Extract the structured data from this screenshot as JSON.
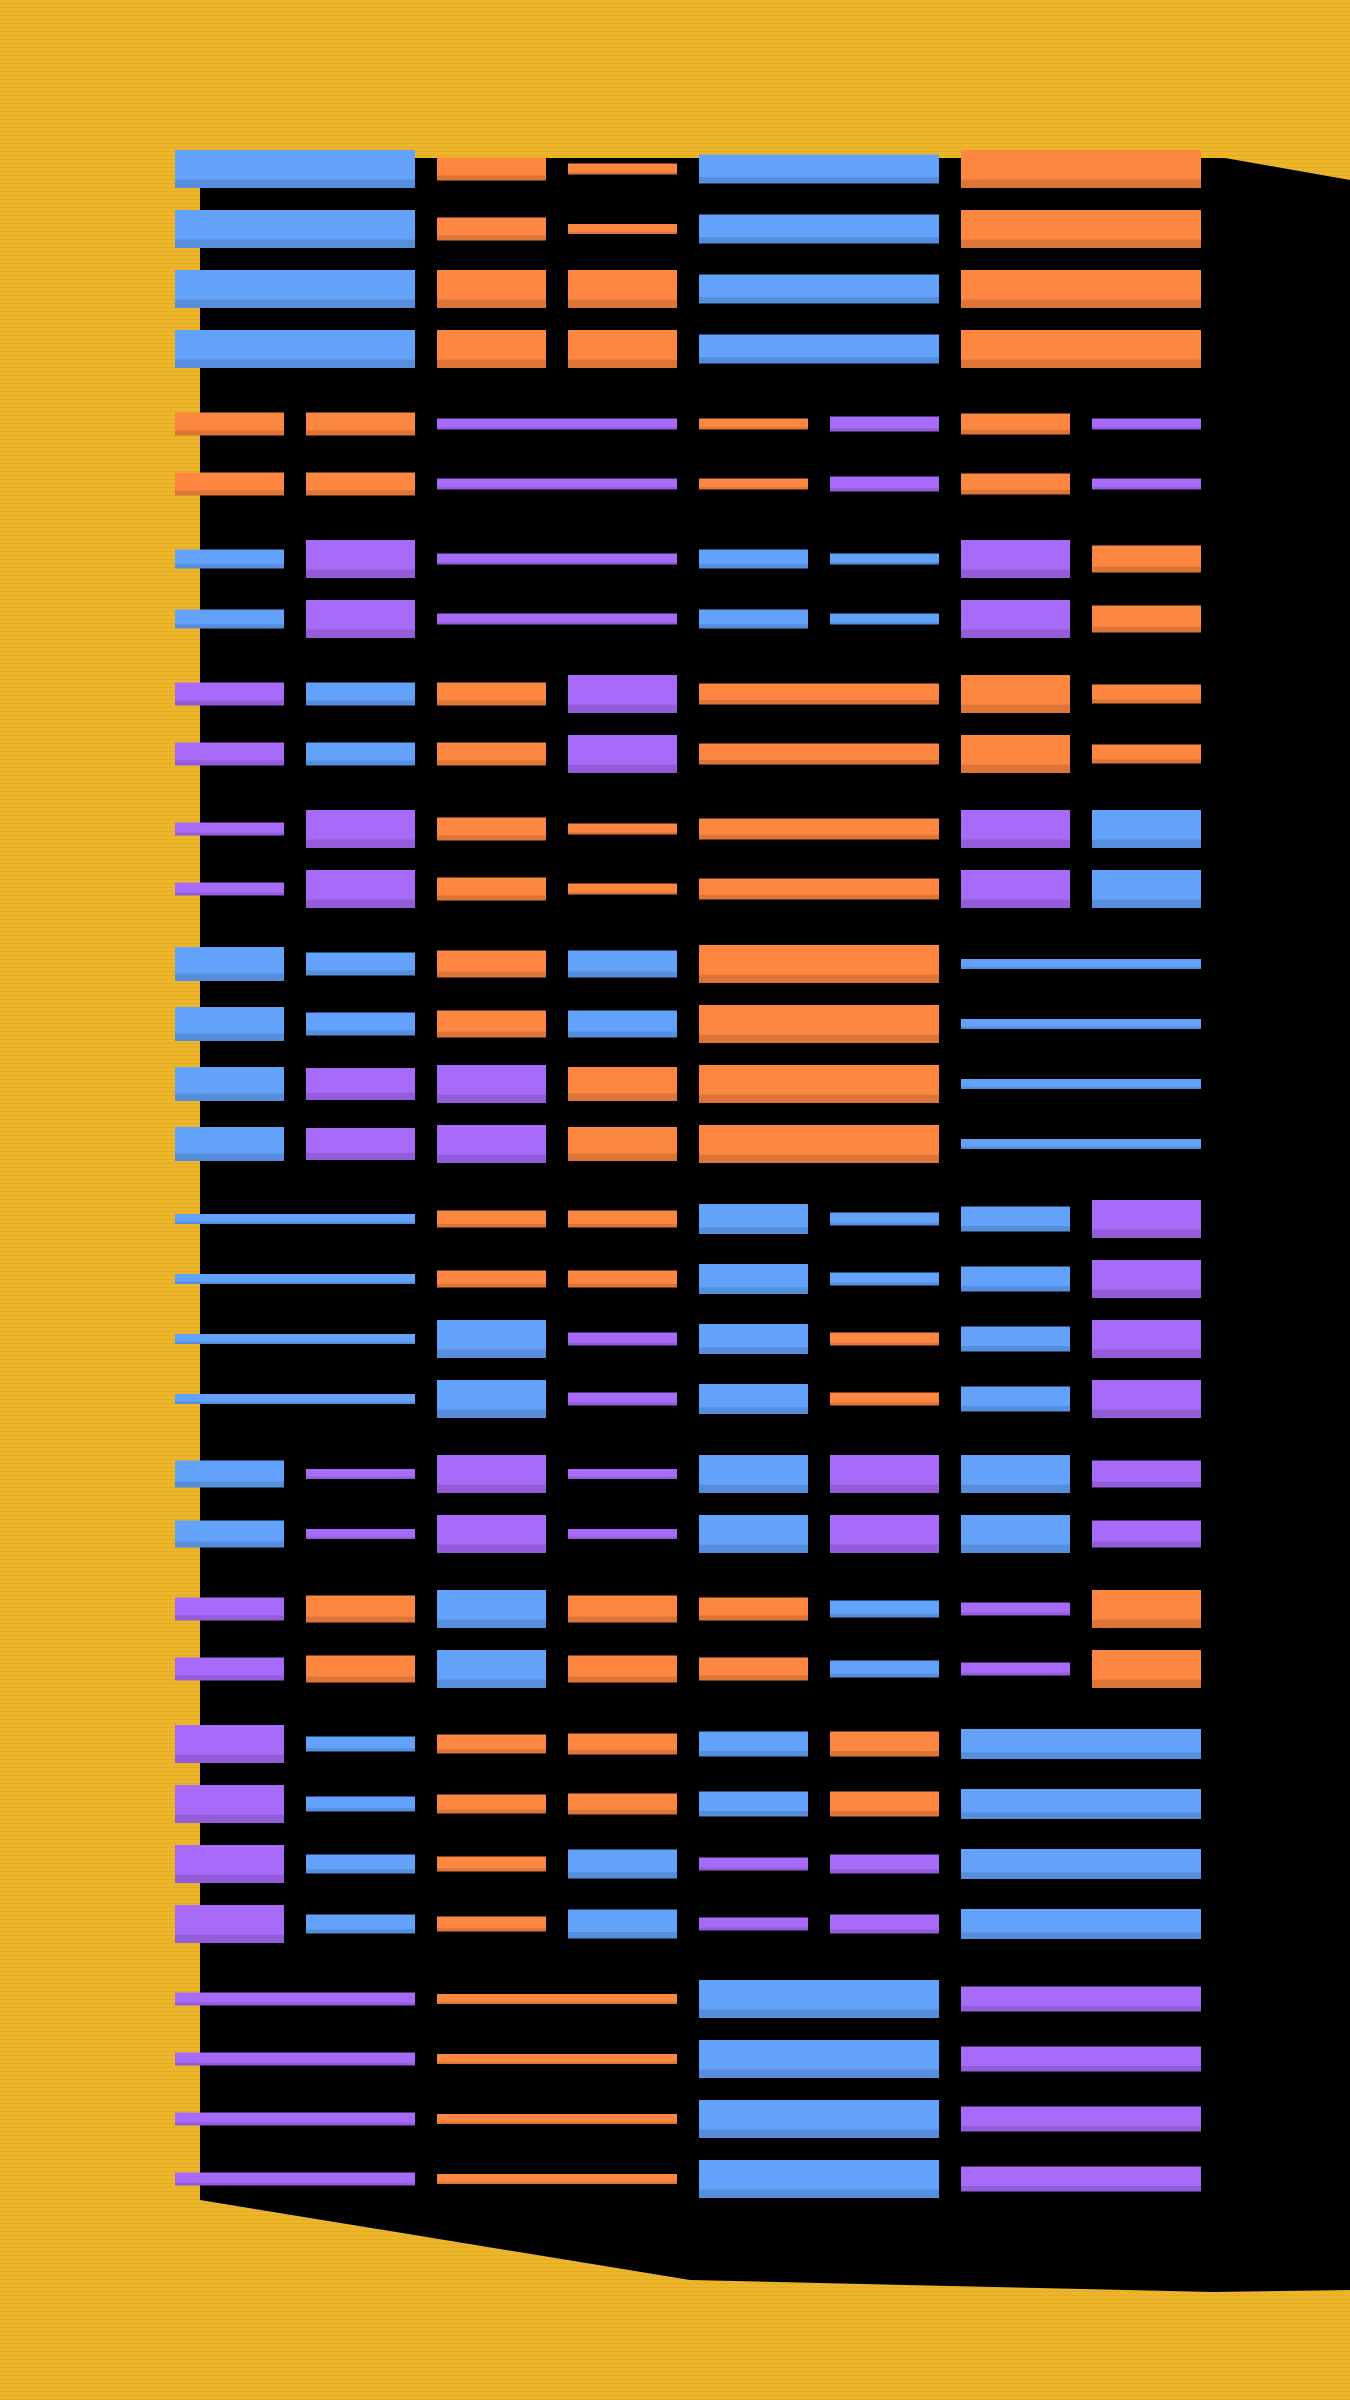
{
  "palette": {
    "background": "#ecb52a",
    "shadow": "#000000",
    "blue": "#62a2fb",
    "orange": "#fd8640",
    "purple": "#a86af9"
  },
  "blocks": [
    {
      "rows": 4,
      "cells": [
        {
          "span": 2,
          "colors": [
            "blue",
            "blue",
            "blue",
            "blue"
          ],
          "heights": [
            1.0,
            1.0,
            1.0,
            1.0
          ]
        },
        {
          "span": 1,
          "colors": [
            "orange",
            "orange",
            "orange",
            "orange"
          ],
          "heights": [
            0.6,
            0.6,
            1.0,
            1.0
          ]
        },
        {
          "span": 1,
          "colors": [
            "orange",
            "orange",
            "orange",
            "orange"
          ],
          "heights": [
            0.3,
            0.25,
            1.0,
            1.0
          ]
        },
        {
          "span": 2,
          "colors": [
            "blue",
            "blue",
            "blue",
            "blue"
          ],
          "heights": [
            0.75,
            0.75,
            0.75,
            0.75
          ]
        },
        {
          "span": 2,
          "colors": [
            "orange",
            "orange",
            "orange",
            "orange"
          ],
          "heights": [
            1.0,
            1.0,
            1.0,
            1.0
          ]
        }
      ]
    },
    {
      "rows": 2,
      "cells": [
        {
          "span": 1,
          "colors": [
            "orange",
            "orange"
          ],
          "heights": [
            0.6,
            0.6
          ]
        },
        {
          "span": 1,
          "colors": [
            "orange",
            "orange"
          ],
          "heights": [
            0.6,
            0.6
          ]
        },
        {
          "span": 2,
          "colors": [
            "purple",
            "purple"
          ],
          "heights": [
            0.3,
            0.3
          ]
        },
        {
          "span": 1,
          "colors": [
            "orange",
            "orange"
          ],
          "heights": [
            0.3,
            0.3
          ]
        },
        {
          "span": 1,
          "colors": [
            "purple",
            "purple"
          ],
          "heights": [
            0.4,
            0.4
          ]
        },
        {
          "span": 1,
          "colors": [
            "orange",
            "orange"
          ],
          "heights": [
            0.55,
            0.55
          ]
        },
        {
          "span": 1,
          "colors": [
            "purple",
            "purple"
          ],
          "heights": [
            0.3,
            0.3
          ]
        }
      ]
    },
    {
      "rows": 2,
      "cells": [
        {
          "span": 1,
          "colors": [
            "blue",
            "blue"
          ],
          "heights": [
            0.5,
            0.5
          ]
        },
        {
          "span": 1,
          "colors": [
            "purple",
            "purple"
          ],
          "heights": [
            1.0,
            1.0
          ]
        },
        {
          "span": 2,
          "colors": [
            "purple",
            "purple"
          ],
          "heights": [
            0.3,
            0.3
          ]
        },
        {
          "span": 1,
          "colors": [
            "blue",
            "blue"
          ],
          "heights": [
            0.5,
            0.5
          ]
        },
        {
          "span": 1,
          "colors": [
            "blue",
            "blue"
          ],
          "heights": [
            0.3,
            0.3
          ]
        },
        {
          "span": 1,
          "colors": [
            "purple",
            "purple"
          ],
          "heights": [
            1.0,
            1.0
          ]
        },
        {
          "span": 1,
          "colors": [
            "orange",
            "orange"
          ],
          "heights": [
            0.7,
            0.7
          ]
        }
      ]
    },
    {
      "rows": 2,
      "cells": [
        {
          "span": 1,
          "colors": [
            "purple",
            "purple"
          ],
          "heights": [
            0.6,
            0.6
          ]
        },
        {
          "span": 1,
          "colors": [
            "blue",
            "blue"
          ],
          "heights": [
            0.6,
            0.6
          ]
        },
        {
          "span": 1,
          "colors": [
            "orange",
            "orange"
          ],
          "heights": [
            0.6,
            0.6
          ]
        },
        {
          "span": 1,
          "colors": [
            "purple",
            "purple"
          ],
          "heights": [
            1.0,
            1.0
          ]
        },
        {
          "span": 2,
          "colors": [
            "orange",
            "orange"
          ],
          "heights": [
            0.55,
            0.55
          ]
        },
        {
          "span": 1,
          "colors": [
            "orange",
            "orange"
          ],
          "heights": [
            1.0,
            1.0
          ]
        },
        {
          "span": 1,
          "colors": [
            "orange",
            "orange"
          ],
          "heights": [
            0.5,
            0.5
          ]
        }
      ]
    },
    {
      "rows": 2,
      "cells": [
        {
          "span": 1,
          "colors": [
            "purple",
            "purple"
          ],
          "heights": [
            0.35,
            0.35
          ]
        },
        {
          "span": 1,
          "colors": [
            "purple",
            "purple"
          ],
          "heights": [
            1.0,
            1.0
          ]
        },
        {
          "span": 1,
          "colors": [
            "orange",
            "orange"
          ],
          "heights": [
            0.6,
            0.6
          ]
        },
        {
          "span": 1,
          "colors": [
            "orange",
            "orange"
          ],
          "heights": [
            0.3,
            0.3
          ]
        },
        {
          "span": 2,
          "colors": [
            "orange",
            "orange"
          ],
          "heights": [
            0.55,
            0.55
          ]
        },
        {
          "span": 1,
          "colors": [
            "purple",
            "purple"
          ],
          "heights": [
            1.0,
            1.0
          ]
        },
        {
          "span": 1,
          "colors": [
            "blue",
            "blue"
          ],
          "heights": [
            1.0,
            1.0
          ]
        }
      ]
    },
    {
      "rows": 4,
      "cells": [
        {
          "span": 1,
          "colors": [
            "blue",
            "blue",
            "blue",
            "blue"
          ],
          "heights": [
            0.9,
            0.9,
            0.9,
            0.9
          ]
        },
        {
          "span": 1,
          "colors": [
            "blue",
            "blue",
            "purple",
            "purple"
          ],
          "heights": [
            0.6,
            0.6,
            0.85,
            0.85
          ]
        },
        {
          "span": 1,
          "colors": [
            "orange",
            "orange",
            "purple",
            "purple"
          ],
          "heights": [
            0.7,
            0.7,
            1.0,
            1.0
          ]
        },
        {
          "span": 1,
          "colors": [
            "blue",
            "blue",
            "orange",
            "orange"
          ],
          "heights": [
            0.7,
            0.7,
            0.9,
            0.9
          ]
        },
        {
          "span": 2,
          "colors": [
            "orange",
            "orange",
            "orange",
            "orange"
          ],
          "heights": [
            1.0,
            1.0,
            1.0,
            1.0
          ]
        },
        {
          "span": 2,
          "colors": [
            "blue",
            "blue",
            "blue",
            "blue"
          ],
          "heights": [
            0.25,
            0.25,
            0.25,
            0.25
          ]
        }
      ]
    },
    {
      "rows": 4,
      "cells": [
        {
          "span": 2,
          "colors": [
            "blue",
            "blue",
            "blue",
            "blue"
          ],
          "heights": [
            0.25,
            0.25,
            0.25,
            0.25
          ]
        },
        {
          "span": 1,
          "colors": [
            "orange",
            "orange",
            "blue",
            "blue"
          ],
          "heights": [
            0.45,
            0.45,
            1.0,
            1.0
          ]
        },
        {
          "span": 1,
          "colors": [
            "orange",
            "orange",
            "purple",
            "purple"
          ],
          "heights": [
            0.45,
            0.45,
            0.35,
            0.35
          ]
        },
        {
          "span": 1,
          "colors": [
            "blue",
            "blue",
            "blue",
            "blue"
          ],
          "heights": [
            0.8,
            0.8,
            0.8,
            0.8
          ]
        },
        {
          "span": 1,
          "colors": [
            "blue",
            "blue",
            "orange",
            "orange"
          ],
          "heights": [
            0.35,
            0.35,
            0.35,
            0.35
          ]
        },
        {
          "span": 1,
          "colors": [
            "blue",
            "blue",
            "blue",
            "blue"
          ],
          "heights": [
            0.65,
            0.65,
            0.65,
            0.65
          ]
        },
        {
          "span": 1,
          "colors": [
            "purple",
            "purple",
            "purple",
            "purple"
          ],
          "heights": [
            1.0,
            1.0,
            1.0,
            1.0
          ]
        }
      ]
    },
    {
      "rows": 2,
      "cells": [
        {
          "span": 1,
          "colors": [
            "blue",
            "blue"
          ],
          "heights": [
            0.7,
            0.7
          ]
        },
        {
          "span": 1,
          "colors": [
            "purple",
            "purple"
          ],
          "heights": [
            0.25,
            0.25
          ]
        },
        {
          "span": 1,
          "colors": [
            "purple",
            "purple"
          ],
          "heights": [
            1.0,
            1.0
          ]
        },
        {
          "span": 1,
          "colors": [
            "purple",
            "purple"
          ],
          "heights": [
            0.25,
            0.25
          ]
        },
        {
          "span": 1,
          "colors": [
            "blue",
            "blue"
          ],
          "heights": [
            1.0,
            1.0
          ]
        },
        {
          "span": 1,
          "colors": [
            "purple",
            "purple"
          ],
          "heights": [
            1.0,
            1.0
          ]
        },
        {
          "span": 1,
          "colors": [
            "blue",
            "blue"
          ],
          "heights": [
            1.0,
            1.0
          ]
        },
        {
          "span": 1,
          "colors": [
            "purple",
            "purple"
          ],
          "heights": [
            0.7,
            0.7
          ]
        }
      ]
    },
    {
      "rows": 2,
      "cells": [
        {
          "span": 1,
          "colors": [
            "purple",
            "purple"
          ],
          "heights": [
            0.6,
            0.6
          ]
        },
        {
          "span": 1,
          "colors": [
            "orange",
            "orange"
          ],
          "heights": [
            0.7,
            0.7
          ]
        },
        {
          "span": 1,
          "colors": [
            "blue",
            "blue"
          ],
          "heights": [
            1.0,
            1.0
          ]
        },
        {
          "span": 1,
          "colors": [
            "orange",
            "orange"
          ],
          "heights": [
            0.7,
            0.7
          ]
        },
        {
          "span": 1,
          "colors": [
            "orange",
            "orange"
          ],
          "heights": [
            0.6,
            0.6
          ]
        },
        {
          "span": 1,
          "colors": [
            "blue",
            "blue"
          ],
          "heights": [
            0.45,
            0.45
          ]
        },
        {
          "span": 1,
          "colors": [
            "purple",
            "purple"
          ],
          "heights": [
            0.35,
            0.35
          ]
        },
        {
          "span": 1,
          "colors": [
            "orange",
            "orange"
          ],
          "heights": [
            1.0,
            1.0
          ]
        }
      ]
    },
    {
      "rows": 4,
      "cells": [
        {
          "span": 1,
          "colors": [
            "purple",
            "purple",
            "purple",
            "purple"
          ],
          "heights": [
            1.0,
            1.0,
            1.0,
            1.0
          ]
        },
        {
          "span": 1,
          "colors": [
            "blue",
            "blue",
            "blue",
            "blue"
          ],
          "heights": [
            0.4,
            0.4,
            0.5,
            0.5
          ]
        },
        {
          "span": 1,
          "colors": [
            "orange",
            "orange",
            "orange",
            "orange"
          ],
          "heights": [
            0.5,
            0.5,
            0.4,
            0.4
          ]
        },
        {
          "span": 1,
          "colors": [
            "orange",
            "orange",
            "blue",
            "blue"
          ],
          "heights": [
            0.55,
            0.55,
            0.75,
            0.75
          ]
        },
        {
          "span": 1,
          "colors": [
            "blue",
            "blue",
            "purple",
            "purple"
          ],
          "heights": [
            0.65,
            0.65,
            0.35,
            0.35
          ]
        },
        {
          "span": 1,
          "colors": [
            "orange",
            "orange",
            "purple",
            "purple"
          ],
          "heights": [
            0.65,
            0.65,
            0.5,
            0.5
          ]
        },
        {
          "span": 2,
          "colors": [
            "blue",
            "blue",
            "blue",
            "blue"
          ],
          "heights": [
            0.8,
            0.8,
            0.8,
            0.8
          ]
        }
      ]
    },
    {
      "rows": 4,
      "cells": [
        {
          "span": 2,
          "colors": [
            "purple",
            "purple",
            "purple",
            "purple"
          ],
          "heights": [
            0.35,
            0.35,
            0.35,
            0.35
          ]
        },
        {
          "span": 2,
          "colors": [
            "orange",
            "orange",
            "orange",
            "orange"
          ],
          "heights": [
            0.25,
            0.25,
            0.25,
            0.25
          ]
        },
        {
          "span": 2,
          "colors": [
            "blue",
            "blue",
            "blue",
            "blue"
          ],
          "heights": [
            1.0,
            1.0,
            1.0,
            1.0
          ]
        },
        {
          "span": 2,
          "colors": [
            "purple",
            "purple",
            "purple",
            "purple"
          ],
          "heights": [
            0.65,
            0.65,
            0.65,
            0.65
          ]
        }
      ]
    }
  ]
}
